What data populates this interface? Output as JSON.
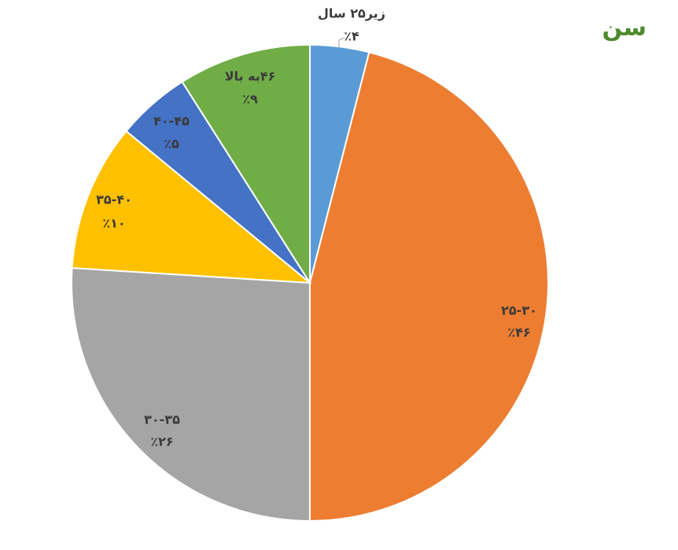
{
  "chart_data": {
    "type": "pie",
    "title": "سن",
    "slices": [
      {
        "category": "زیر۲۵ سال",
        "value": 4,
        "value_label": "٪۴",
        "color": "#5b9bd5"
      },
      {
        "category": "۲۵-۳۰",
        "value": 46,
        "value_label": "٪۴۶",
        "color": "#ed7d31"
      },
      {
        "category": "۳۰-۳۵",
        "value": 26,
        "value_label": "٪۲۶",
        "color": "#a5a5a5"
      },
      {
        "category": "۳۵-۴۰",
        "value": 10,
        "value_label": "٪۱۰",
        "color": "#ffc000"
      },
      {
        "category": "۴۰-۴۵",
        "value": 5,
        "value_label": "٪۵",
        "color": "#4472c4"
      },
      {
        "category": "۴۶به بالا",
        "value": 9,
        "value_label": "٪۹",
        "color": "#70ad47"
      }
    ],
    "legend": "none"
  }
}
